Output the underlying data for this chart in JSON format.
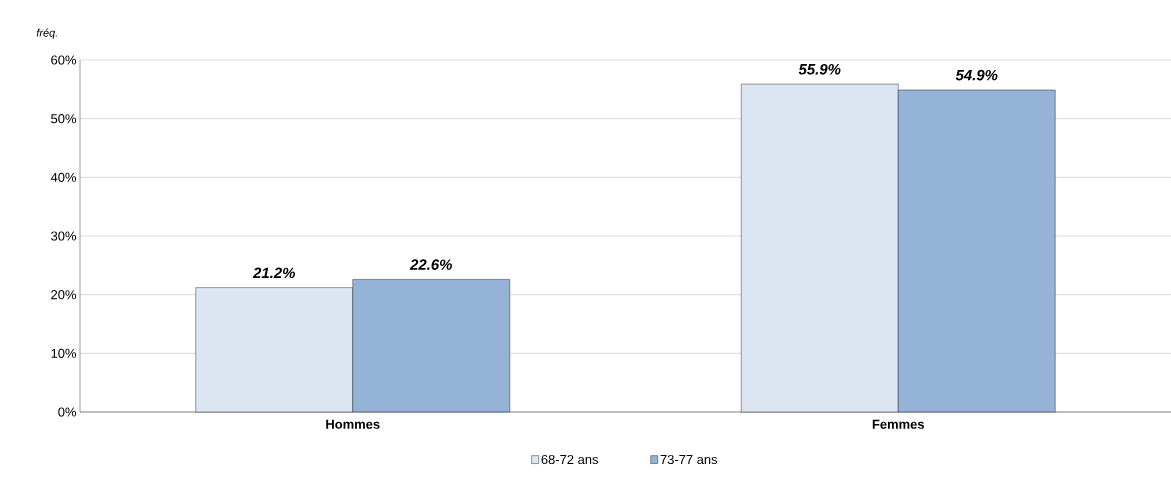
{
  "chart_data": {
    "type": "bar",
    "ylabel": "fréq.",
    "categories": [
      "Hommes",
      "Femmes"
    ],
    "series": [
      {
        "name": "68-72 ans",
        "color": "#dce6f2",
        "values": [
          21.2,
          55.9
        ],
        "value_labels": [
          "21.2%",
          "55.9%"
        ]
      },
      {
        "name": "73-77 ans",
        "color": "#95b3d7",
        "values": [
          22.6,
          54.9
        ],
        "value_labels": [
          "22.6%",
          "54.9%"
        ]
      }
    ],
    "ylim": [
      0,
      60
    ],
    "yticks": [
      {
        "value": 0,
        "label": "0%"
      },
      {
        "value": 10,
        "label": "10%"
      },
      {
        "value": 20,
        "label": "20%"
      },
      {
        "value": 30,
        "label": "30%"
      },
      {
        "value": 40,
        "label": "40%"
      },
      {
        "value": 50,
        "label": "50%"
      },
      {
        "value": 60,
        "label": "60%"
      }
    ],
    "grid": "y",
    "legend": "bottom"
  }
}
